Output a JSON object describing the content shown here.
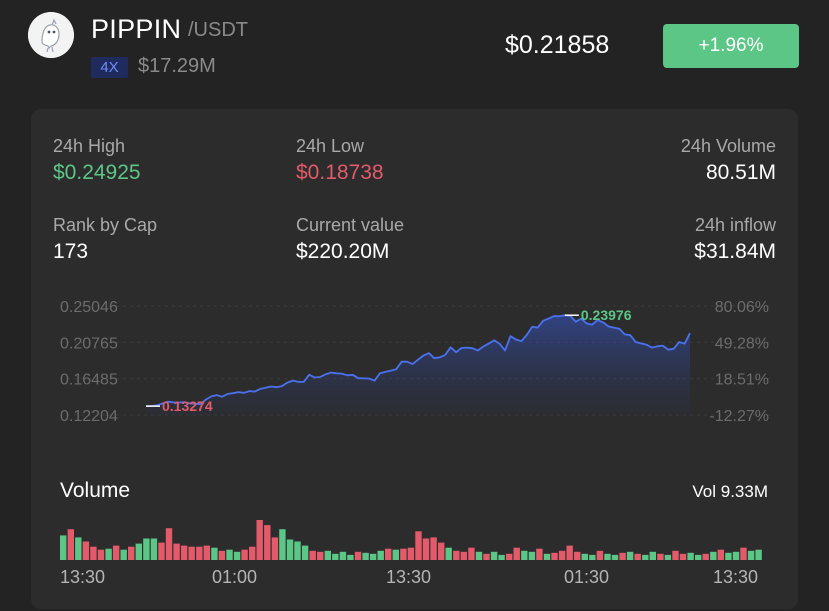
{
  "header": {
    "symbol": "PIPPIN",
    "pair": "/USDT",
    "leverage": "4X",
    "market_cap": "$17.29M",
    "price": "$0.21858",
    "change": "+1.96%",
    "change_color": "#5cc686"
  },
  "stats": {
    "high_label": "24h High",
    "high_value": "$0.24925",
    "low_label": "24h Low",
    "low_value": "$0.18738",
    "volume_label": "24h Volume",
    "volume_value": "80.51M",
    "rank_label": "Rank by Cap",
    "rank_value": "173",
    "current_label": "Current value",
    "current_value": "$220.20M",
    "inflow_label": "24h inflow",
    "inflow_value": "$31.84M"
  },
  "volume": {
    "title": "Volume",
    "vol_label": "Vol 9.33M"
  },
  "chart_data": [
    {
      "type": "area",
      "y_left_ticks": [
        "0.25046",
        "0.20765",
        "0.16485",
        "0.12204"
      ],
      "y_right_ticks": [
        "80.06%",
        "49.28%",
        "18.51%",
        "-12.27%"
      ],
      "ylim": [
        0.12204,
        0.25046
      ],
      "annotations": [
        {
          "label": "0.13274",
          "kind": "low",
          "color": "#e35a6a"
        },
        {
          "label": "0.23976",
          "kind": "high",
          "color": "#5cc686"
        }
      ],
      "x_ticks": [
        "13:30",
        "01:00",
        "13:30",
        "01:30",
        "13:30"
      ],
      "series": [
        {
          "values": [
            0.1325,
            0.1327,
            0.1334,
            0.1356,
            0.1377,
            0.137,
            0.1365,
            0.1372,
            0.136,
            0.1352,
            0.1348,
            0.1402,
            0.144,
            0.1455,
            0.1436,
            0.1468,
            0.1478,
            0.149,
            0.1482,
            0.1502,
            0.1496,
            0.1528,
            0.1542,
            0.1556,
            0.1548,
            0.1562,
            0.1602,
            0.1626,
            0.161,
            0.1612,
            0.1695,
            0.1662,
            0.1668,
            0.17,
            0.172,
            0.1712,
            0.1708,
            0.1688,
            0.1694,
            0.1654,
            0.1652,
            0.165,
            0.1624,
            0.1712,
            0.1728,
            0.1744,
            0.176,
            0.1848,
            0.1848,
            0.182,
            0.1872,
            0.192,
            0.195,
            0.189,
            0.19,
            0.1928,
            0.2018,
            0.196,
            0.201,
            0.2014,
            0.2008,
            0.198,
            0.2028,
            0.2062,
            0.21,
            0.206,
            0.198,
            0.215,
            0.211,
            0.209,
            0.2164,
            0.226,
            0.225,
            0.233,
            0.2356,
            0.2386,
            0.2384,
            0.2396,
            0.2388,
            0.232,
            0.2356,
            0.23,
            0.2284,
            0.2338,
            0.2312,
            0.2264,
            0.225,
            0.2236,
            0.217,
            0.216,
            0.208,
            0.2064,
            0.205,
            0.2014,
            0.203,
            0.2038,
            0.199,
            0.2,
            0.208,
            0.206,
            0.2185
          ]
        }
      ]
    },
    {
      "type": "bar",
      "title": "Volume",
      "colors": {
        "up": "#5cc686",
        "down": "#e35a6a"
      },
      "bars": [
        {
          "v": 24,
          "up": true
        },
        {
          "v": 30,
          "up": false
        },
        {
          "v": 22,
          "up": true
        },
        {
          "v": 18,
          "up": false
        },
        {
          "v": 13,
          "up": false
        },
        {
          "v": 10,
          "up": false
        },
        {
          "v": 11,
          "up": true
        },
        {
          "v": 14,
          "up": false
        },
        {
          "v": 10,
          "up": true
        },
        {
          "v": 13,
          "up": false
        },
        {
          "v": 16,
          "up": true
        },
        {
          "v": 21,
          "up": true
        },
        {
          "v": 21,
          "up": true
        },
        {
          "v": 17,
          "up": false
        },
        {
          "v": 31,
          "up": false
        },
        {
          "v": 16,
          "up": false
        },
        {
          "v": 14,
          "up": false
        },
        {
          "v": 13,
          "up": false
        },
        {
          "v": 13,
          "up": false
        },
        {
          "v": 14,
          "up": false
        },
        {
          "v": 12,
          "up": true
        },
        {
          "v": 9,
          "up": false
        },
        {
          "v": 10,
          "up": true
        },
        {
          "v": 8,
          "up": true
        },
        {
          "v": 10,
          "up": false
        },
        {
          "v": 13,
          "up": false
        },
        {
          "v": 39,
          "up": false
        },
        {
          "v": 34,
          "up": false
        },
        {
          "v": 22,
          "up": false
        },
        {
          "v": 30,
          "up": true
        },
        {
          "v": 20,
          "up": true
        },
        {
          "v": 18,
          "up": true
        },
        {
          "v": 14,
          "up": true
        },
        {
          "v": 9,
          "up": false
        },
        {
          "v": 8,
          "up": false
        },
        {
          "v": 9,
          "up": true
        },
        {
          "v": 6,
          "up": true
        },
        {
          "v": 8,
          "up": true
        },
        {
          "v": 5,
          "up": true
        },
        {
          "v": 8,
          "up": false
        },
        {
          "v": 7,
          "up": true
        },
        {
          "v": 6,
          "up": true
        },
        {
          "v": 9,
          "up": true
        },
        {
          "v": 11,
          "up": false
        },
        {
          "v": 10,
          "up": true
        },
        {
          "v": 11,
          "up": false
        },
        {
          "v": 12,
          "up": false
        },
        {
          "v": 28,
          "up": false
        },
        {
          "v": 21,
          "up": false
        },
        {
          "v": 22,
          "up": false
        },
        {
          "v": 17,
          "up": false
        },
        {
          "v": 12,
          "up": true
        },
        {
          "v": 9,
          "up": false
        },
        {
          "v": 8,
          "up": false
        },
        {
          "v": 12,
          "up": false
        },
        {
          "v": 8,
          "up": true
        },
        {
          "v": 6,
          "up": false
        },
        {
          "v": 8,
          "up": true
        },
        {
          "v": 5,
          "up": true
        },
        {
          "v": 6,
          "up": false
        },
        {
          "v": 12,
          "up": false
        },
        {
          "v": 9,
          "up": true
        },
        {
          "v": 8,
          "up": true
        },
        {
          "v": 11,
          "up": false
        },
        {
          "v": 6,
          "up": true
        },
        {
          "v": 7,
          "up": false
        },
        {
          "v": 9,
          "up": false
        },
        {
          "v": 14,
          "up": false
        },
        {
          "v": 8,
          "up": false
        },
        {
          "v": 6,
          "up": true
        },
        {
          "v": 5,
          "up": true
        },
        {
          "v": 9,
          "up": false
        },
        {
          "v": 6,
          "up": true
        },
        {
          "v": 5,
          "up": true
        },
        {
          "v": 7,
          "up": false
        },
        {
          "v": 8,
          "up": true
        },
        {
          "v": 6,
          "up": false
        },
        {
          "v": 5,
          "up": true
        },
        {
          "v": 8,
          "up": true
        },
        {
          "v": 6,
          "up": false
        },
        {
          "v": 5,
          "up": true
        },
        {
          "v": 9,
          "up": false
        },
        {
          "v": 6,
          "up": false
        },
        {
          "v": 7,
          "up": true
        },
        {
          "v": 5,
          "up": true
        },
        {
          "v": 6,
          "up": false
        },
        {
          "v": 8,
          "up": true
        },
        {
          "v": 10,
          "up": false
        },
        {
          "v": 7,
          "up": true
        },
        {
          "v": 8,
          "up": true
        },
        {
          "v": 12,
          "up": false
        },
        {
          "v": 9,
          "up": true
        },
        {
          "v": 10,
          "up": true
        }
      ]
    }
  ]
}
